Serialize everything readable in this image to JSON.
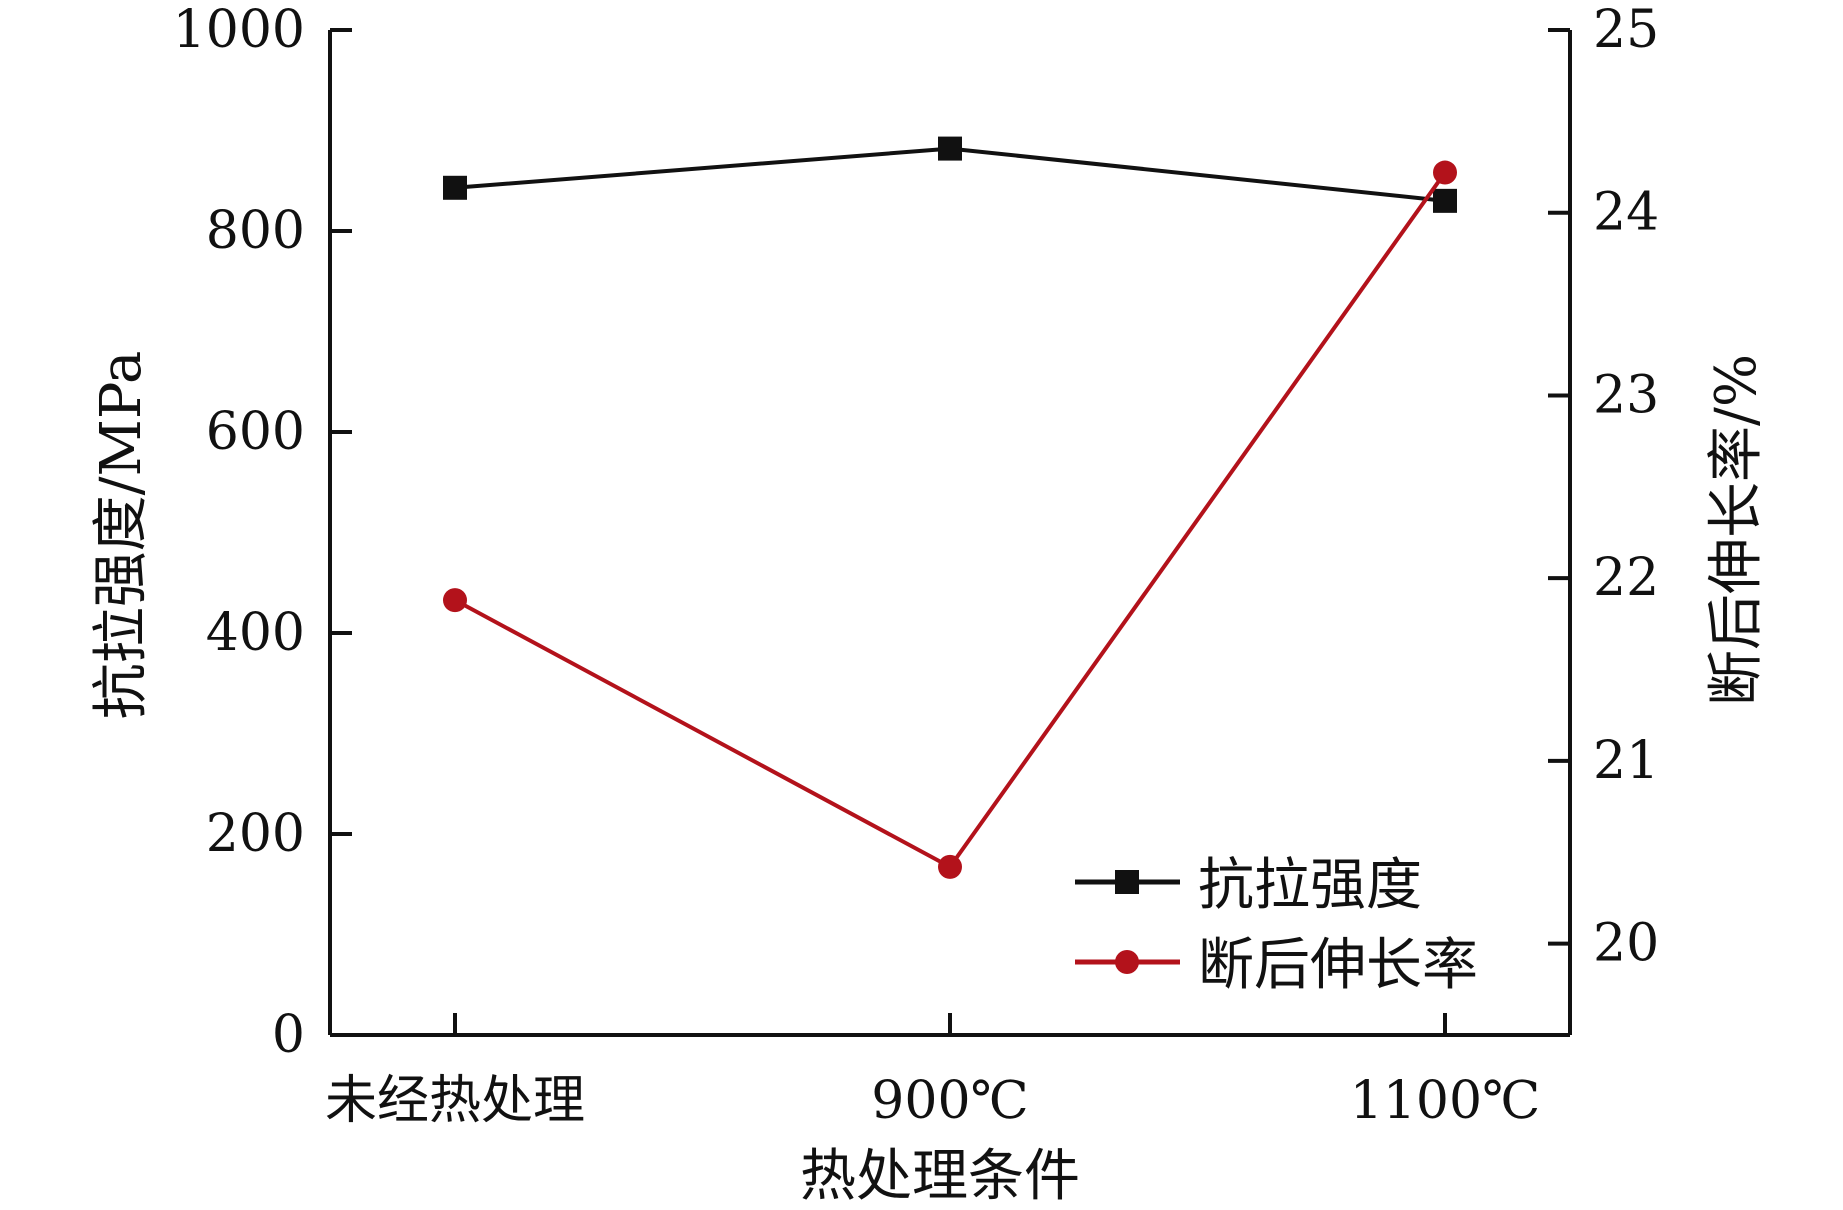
{
  "chart_data": {
    "type": "line",
    "title": "",
    "xlabel": "热处理条件",
    "categories": [
      "未经热处理",
      "900℃",
      "1100℃"
    ],
    "y_left": {
      "label": "抗拉强度/MPa",
      "ylim": [
        0,
        1000
      ],
      "ticks": [
        "0",
        "200",
        "400",
        "600",
        "800",
        "1000"
      ]
    },
    "y_right": {
      "label": "断后伸长率/%",
      "ylim": [
        19.5,
        25
      ],
      "ticks": [
        "20",
        "21",
        "22",
        "23",
        "24",
        "25"
      ]
    },
    "grid": false,
    "legend_position": "bottom-right",
    "series": [
      {
        "name": "抗拉强度",
        "axis": "left",
        "marker": "square",
        "color": "#111111",
        "values": [
          843,
          882,
          830
        ]
      },
      {
        "name": "断后伸长率",
        "axis": "right",
        "marker": "circle",
        "color": "#b3121b",
        "values": [
          21.88,
          20.42,
          24.22
        ]
      }
    ]
  }
}
